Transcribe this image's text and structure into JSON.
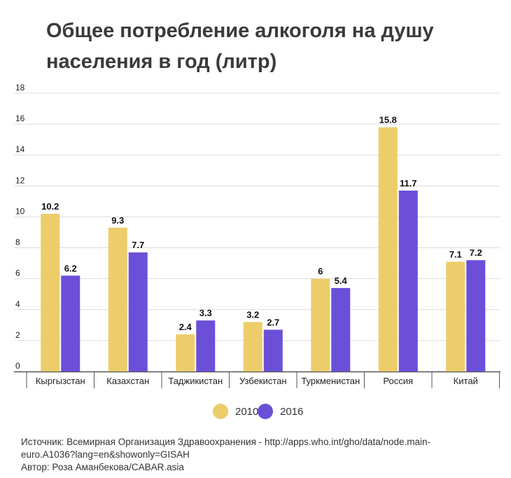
{
  "title_lines": [
    "Общее потребление алкоголя на душу",
    "населения в год (литр)"
  ],
  "colors": {
    "s2010": "#eccd6a",
    "s2016": "#6b4fd9",
    "grid": "#dcdcdc",
    "axis": "#555555",
    "text": "#222222"
  },
  "source_lines": [
    "Источник: Всемирная Организация Здравоохранения - http://apps.who.int/gho/data/node.main-",
    "euro.A1036?lang=en&showonly=GISAH",
    "Автор: Роза Аманбекова/CABAR.asia"
  ],
  "legend": [
    {
      "label": "2010",
      "color": "#eccd6a"
    },
    {
      "label": "2016",
      "color": "#6b4fd9"
    }
  ],
  "chart_data": {
    "type": "bar",
    "title": "Общее потребление алкоголя на душу населения в год (литр)",
    "xlabel": "",
    "ylabel": "",
    "ylim": [
      0,
      18
    ],
    "yticks": [
      0,
      2,
      4,
      6,
      8,
      10,
      12,
      14,
      16,
      18
    ],
    "categories": [
      "Кыргызстан",
      "Казахстан",
      "Таджикистан",
      "Узбекистан",
      "Туркменистан",
      "Россия",
      "Китай"
    ],
    "series": [
      {
        "name": "2010",
        "values": [
          10.2,
          9.3,
          2.4,
          3.2,
          6,
          15.8,
          7.1
        ],
        "labels": [
          "10.2",
          "9.3",
          "2.4",
          "3.2",
          "6",
          "15.8",
          "7.1"
        ]
      },
      {
        "name": "2016",
        "values": [
          6.2,
          7.7,
          3.3,
          2.7,
          5.4,
          11.7,
          7.2
        ],
        "labels": [
          "6.2",
          "7.7",
          "3.3",
          "2.7",
          "5.4",
          "11.7",
          "7.2"
        ]
      }
    ],
    "legend_position": "bottom"
  }
}
